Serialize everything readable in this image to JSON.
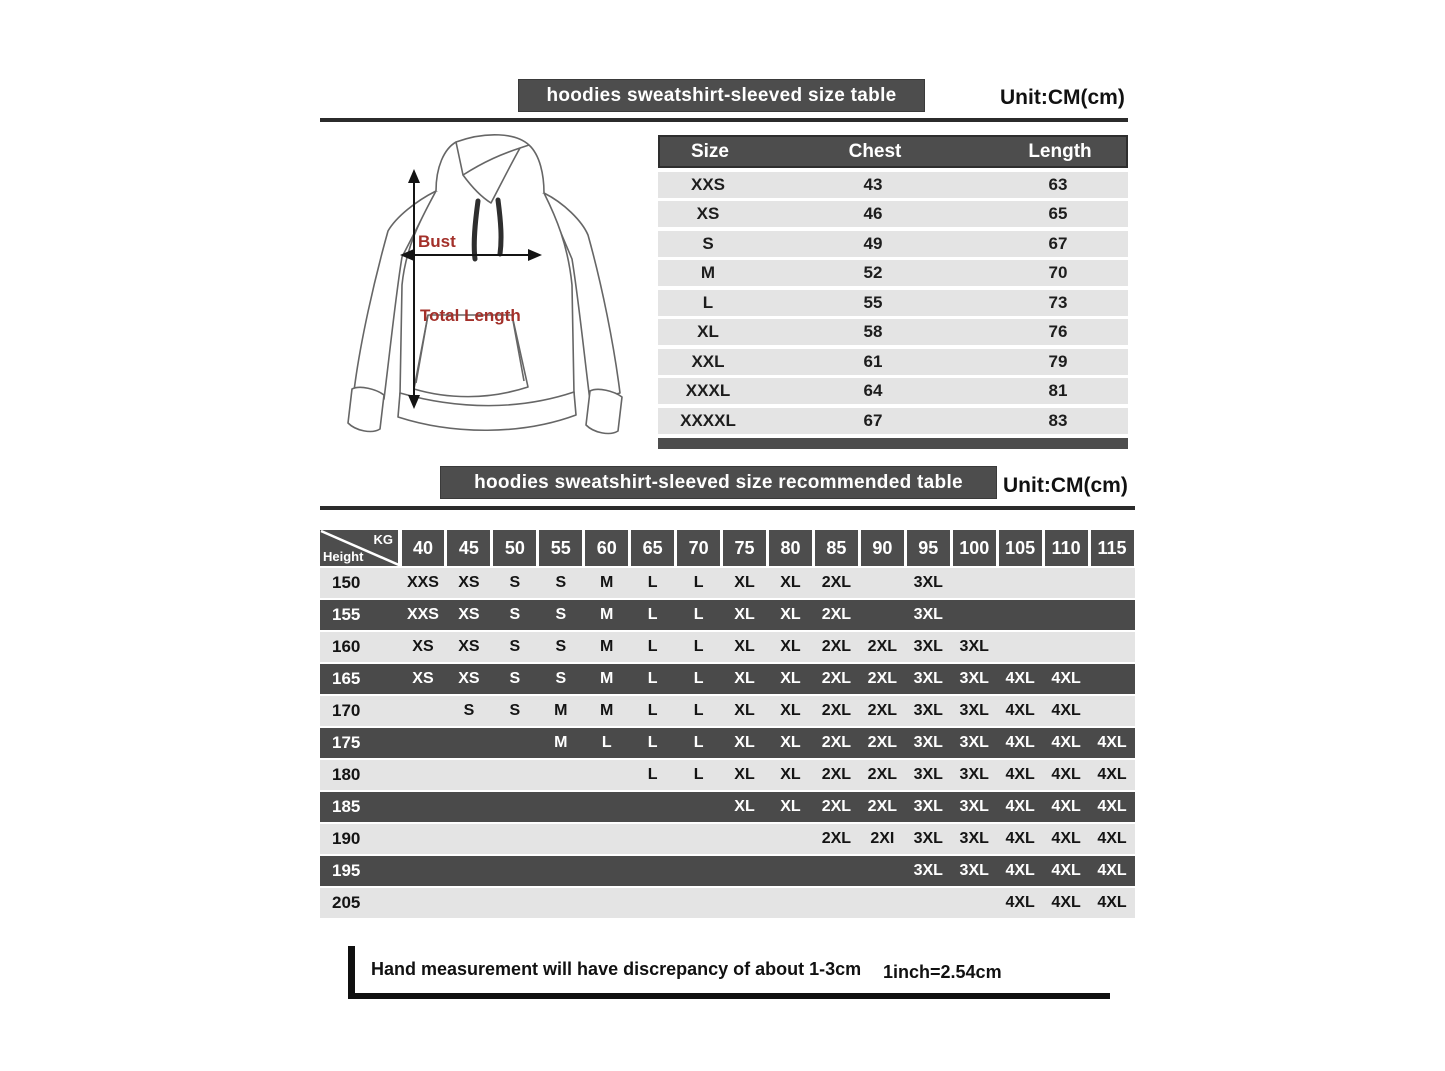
{
  "unit_label": "Unit:CM(cm)",
  "size_table": {
    "title": "hoodies sweatshirt-sleeved size  table",
    "columns": [
      "Size",
      "Chest",
      "Length"
    ],
    "rows": [
      {
        "size": "XXS",
        "chest": "43",
        "length": "63"
      },
      {
        "size": "XS",
        "chest": "46",
        "length": "65"
      },
      {
        "size": "S",
        "chest": "49",
        "length": "67"
      },
      {
        "size": "M",
        "chest": "52",
        "length": "70"
      },
      {
        "size": "L",
        "chest": "55",
        "length": "73"
      },
      {
        "size": "XL",
        "chest": "58",
        "length": "76"
      },
      {
        "size": "XXL",
        "chest": "61",
        "length": "79"
      },
      {
        "size": "XXXL",
        "chest": "64",
        "length": "81"
      },
      {
        "size": "XXXXL",
        "chest": "67",
        "length": "83"
      }
    ]
  },
  "diagram": {
    "bust_label": "Bust",
    "total_length_label": "Total Length"
  },
  "recommended_table": {
    "title": "hoodies sweatshirt-sleeved size recommended table",
    "corner": {
      "kg": "KG",
      "height": "Height"
    },
    "weights": [
      "40",
      "45",
      "50",
      "55",
      "60",
      "65",
      "70",
      "75",
      "80",
      "85",
      "90",
      "95",
      "100",
      "105",
      "110",
      "115"
    ],
    "rows": [
      {
        "height": "150",
        "cells": [
          "XXS",
          "XS",
          "S",
          "S",
          "M",
          "L",
          "L",
          "XL",
          "XL",
          "2XL",
          "",
          "3XL",
          "",
          "",
          "",
          ""
        ]
      },
      {
        "height": "155",
        "cells": [
          "XXS",
          "XS",
          "S",
          "S",
          "M",
          "L",
          "L",
          "XL",
          "XL",
          "2XL",
          "",
          "3XL",
          "",
          "",
          "",
          ""
        ]
      },
      {
        "height": "160",
        "cells": [
          "XS",
          "XS",
          "S",
          "S",
          "M",
          "L",
          "L",
          "XL",
          "XL",
          "2XL",
          "2XL",
          "3XL",
          "3XL",
          "",
          "",
          ""
        ]
      },
      {
        "height": "165",
        "cells": [
          "XS",
          "XS",
          "S",
          "S",
          "M",
          "L",
          "L",
          "XL",
          "XL",
          "2XL",
          "2XL",
          "3XL",
          "3XL",
          "4XL",
          "4XL",
          ""
        ]
      },
      {
        "height": "170",
        "cells": [
          "",
          "S",
          "S",
          "M",
          "M",
          "L",
          "L",
          "XL",
          "XL",
          "2XL",
          "2XL",
          "3XL",
          "3XL",
          "4XL",
          "4XL",
          ""
        ]
      },
      {
        "height": "175",
        "cells": [
          "",
          "",
          "",
          "M",
          "L",
          "L",
          "L",
          "XL",
          "XL",
          "2XL",
          "2XL",
          "3XL",
          "3XL",
          "4XL",
          "4XL",
          "4XL"
        ]
      },
      {
        "height": "180",
        "cells": [
          "",
          "",
          "",
          "",
          "",
          "L",
          "L",
          "XL",
          "XL",
          "2XL",
          "2XL",
          "3XL",
          "3XL",
          "4XL",
          "4XL",
          "4XL"
        ]
      },
      {
        "height": "185",
        "cells": [
          "",
          "",
          "",
          "",
          "",
          "",
          "",
          "XL",
          "XL",
          "2XL",
          "2XL",
          "3XL",
          "3XL",
          "4XL",
          "4XL",
          "4XL"
        ]
      },
      {
        "height": "190",
        "cells": [
          "",
          "",
          "",
          "",
          "",
          "",
          "",
          "",
          "",
          "2XL",
          "2XI",
          "3XL",
          "3XL",
          "4XL",
          "4XL",
          "4XL"
        ]
      },
      {
        "height": "195",
        "cells": [
          "",
          "",
          "",
          "",
          "",
          "",
          "",
          "",
          "",
          "",
          "",
          "3XL",
          "3XL",
          "4XL",
          "4XL",
          "4XL"
        ]
      },
      {
        "height": "205",
        "cells": [
          "",
          "",
          "",
          "",
          "",
          "",
          "",
          "",
          "",
          "",
          "",
          "",
          "",
          "4XL",
          "4XL",
          "4XL"
        ]
      }
    ]
  },
  "footer": {
    "note": "Hand measurement will have discrepancy of about  1-3cm",
    "conversion": "1inch=2.54cm"
  },
  "colors": {
    "bar_dark": "#4d4d4d",
    "row_light": "#e4e4e4",
    "row_dark": "#4a4a4a",
    "accent_red": "#a3302a",
    "line": "#2b2b2b"
  }
}
